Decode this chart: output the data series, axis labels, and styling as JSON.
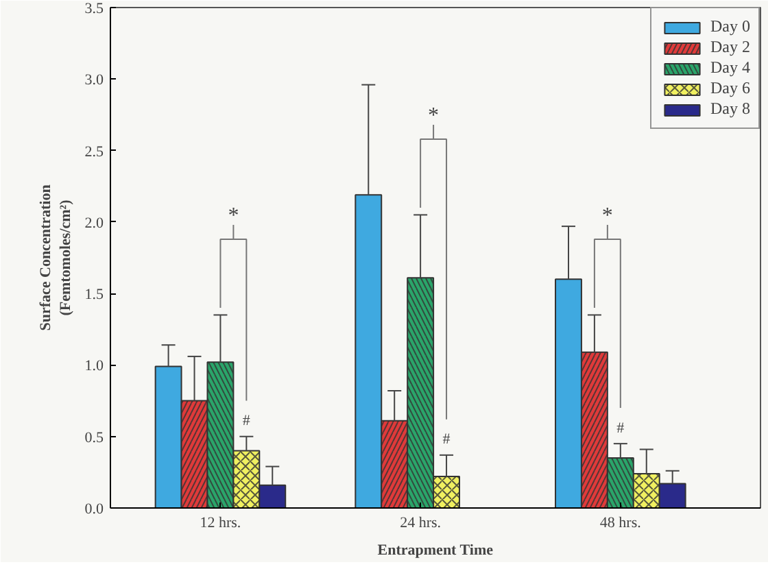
{
  "chart_data": {
    "type": "bar",
    "xlabel": "Entrapment Time",
    "ylabel": "Surface Concentration\n(Femtomoles/cm²)",
    "categories": [
      "12 hrs.",
      "24 hrs.",
      "48 hrs."
    ],
    "series": [
      {
        "name": "Day 0",
        "color": "#3fa9e0",
        "values": [
          0.99,
          2.19,
          1.6
        ],
        "errors": [
          [
            0.99,
            1.14
          ],
          [
            2.19,
            2.96
          ],
          [
            1.6,
            1.97
          ]
        ]
      },
      {
        "name": "Day 2",
        "color": "#e03a3a",
        "values": [
          0.75,
          0.61,
          1.09
        ],
        "errors": [
          [
            0.75,
            1.06
          ],
          [
            0.61,
            0.82
          ],
          [
            1.09,
            1.35
          ]
        ]
      },
      {
        "name": "Day 4",
        "color": "#2aa56a",
        "values": [
          1.02,
          1.61,
          0.35
        ],
        "errors": [
          [
            1.02,
            1.35
          ],
          [
            1.61,
            2.05
          ],
          [
            0.35,
            0.45
          ]
        ]
      },
      {
        "name": "Day 6",
        "color": "#f0f060",
        "values": [
          0.4,
          0.22,
          0.24
        ],
        "errors": [
          [
            0.4,
            0.5
          ],
          [
            0.22,
            0.37
          ],
          [
            0.24,
            0.41
          ]
        ]
      },
      {
        "name": "Day 8",
        "color": "#2a2a8a",
        "values": [
          0.16,
          null,
          0.17
        ],
        "errors": [
          [
            0.16,
            0.29
          ],
          null,
          [
            0.17,
            0.26
          ]
        ]
      }
    ],
    "ylim": [
      0,
      3.5
    ],
    "yticks": [
      {
        "value": 0,
        "label": "0.0"
      },
      {
        "value": 0.5,
        "label": "0.5"
      },
      {
        "value": 1,
        "label": "1.0"
      },
      {
        "value": 1.5,
        "label": "1.5"
      },
      {
        "value": 2,
        "label": "2.0"
      },
      {
        "value": 2.5,
        "label": "2.5"
      },
      {
        "value": 3,
        "label": "3.0"
      },
      {
        "value": 3.5,
        "label": "3.5"
      }
    ],
    "annotations": [
      "*",
      "*",
      "*",
      "#",
      "#",
      "#"
    ],
    "legend": "top right",
    "grid": false
  }
}
